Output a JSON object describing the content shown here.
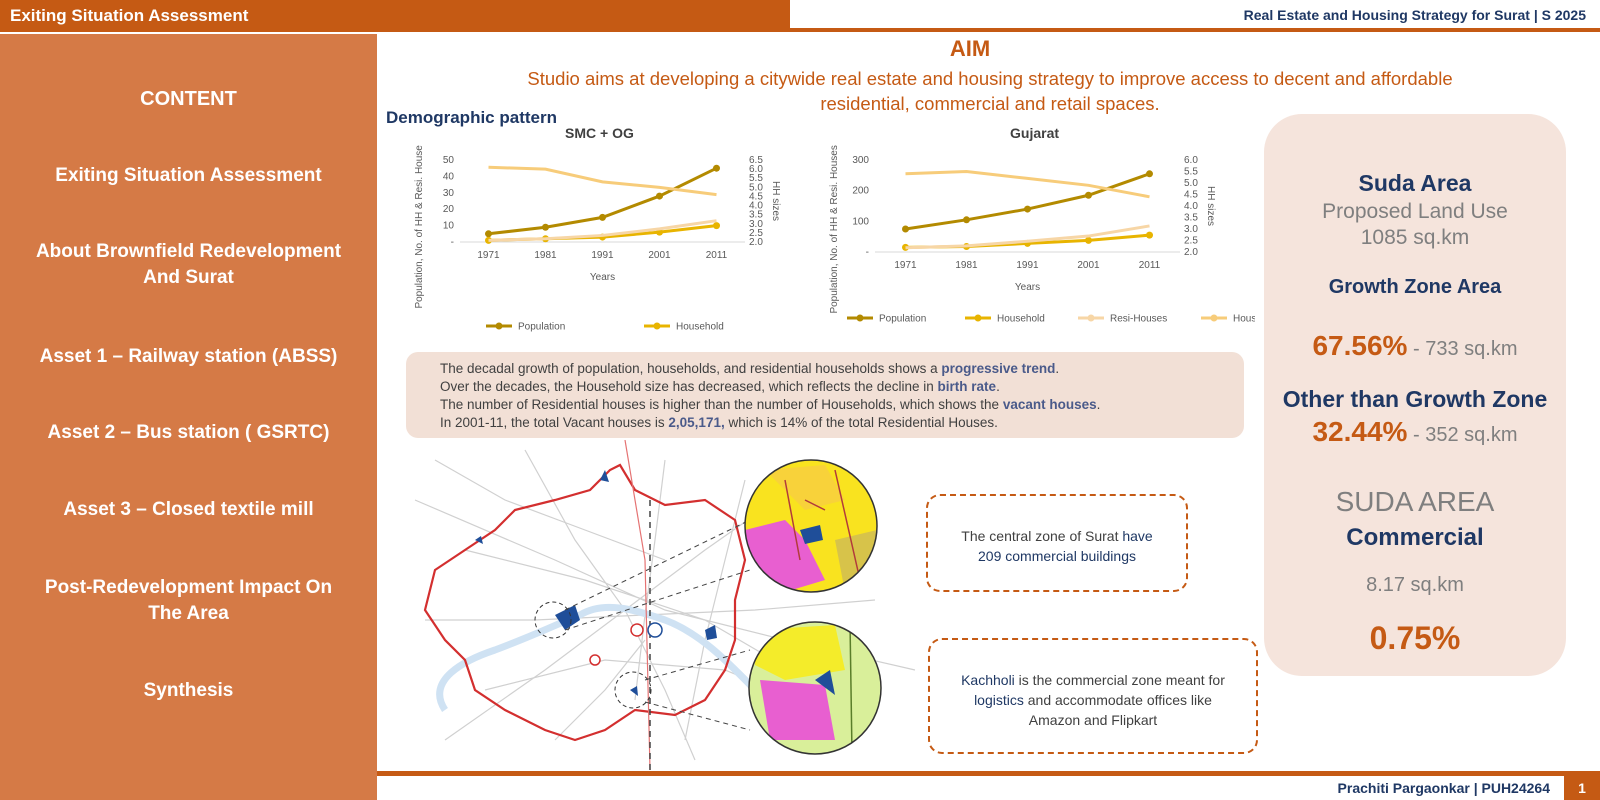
{
  "header": {
    "left_title": "Exiting Situation Assessment",
    "right_title": "Real Estate and Housing Strategy for Surat | S 2025"
  },
  "sidebar": {
    "heading": "CONTENT",
    "items": [
      {
        "label_line1": "Exiting Situation Assessment",
        "label_line2": ""
      },
      {
        "label_line1": "About Brownfield Redevelopment",
        "label_line2": "And Surat"
      },
      {
        "label_line1": "Asset 1 – Railway station (ABSS)",
        "label_line2": ""
      },
      {
        "label_line1": "Asset 2 – Bus station ( GSRTC)",
        "label_line2": ""
      },
      {
        "label_line1": "Asset 3 – Closed textile mill",
        "label_line2": ""
      },
      {
        "label_line1": "Post-Redevelopment Impact On",
        "label_line2": "The Area"
      },
      {
        "label_line1": "Synthesis",
        "label_line2": ""
      }
    ]
  },
  "aim": {
    "title": "AIM",
    "line1": "Studio aims at developing a citywide real estate and housing strategy to improve access to decent and affordable",
    "line2": "residential, commercial and retail spaces."
  },
  "section_title": "Demographic pattern",
  "chart_data": [
    {
      "type": "line",
      "title": "SMC + OG",
      "xlabel": "Years",
      "ylabel": "Population, No. of HH & Resi. Houses (in Lakhs)",
      "y2label": "HH sizes",
      "categories": [
        "1971",
        "1981",
        "1991",
        "2001",
        "2011"
      ],
      "yticks": [
        "-",
        "10",
        "20",
        "30",
        "40",
        "50"
      ],
      "y2ticks": [
        "2.0",
        "2.5",
        "3.0",
        "3.5",
        "4.0",
        "4.5",
        "5.0",
        "5.5",
        "6.0",
        "6.5"
      ],
      "ylim": [
        0,
        50
      ],
      "y2lim": [
        2.0,
        6.5
      ],
      "series": [
        {
          "name": "Population",
          "axis": "left",
          "color": "#b38a00",
          "values": [
            5,
            9,
            15,
            28,
            45
          ]
        },
        {
          "name": "Household",
          "axis": "left",
          "color": "#e8b400",
          "values": [
            1,
            2,
            3,
            6,
            10
          ]
        },
        {
          "name": "",
          "axis": "left",
          "color": "#f7d6a6",
          "values": [
            1,
            2,
            4,
            8,
            13
          ]
        },
        {
          "name": "",
          "axis": "right",
          "color": "#f7cc7a",
          "values": [
            6.1,
            6.0,
            5.3,
            5.0,
            4.6
          ]
        }
      ],
      "legend_position": "bottom"
    },
    {
      "type": "line",
      "title": "Gujarat",
      "xlabel": "Years",
      "ylabel": "Population, No. of HH & Resi. Houses (in Lakhs)",
      "y2label": "HH sizes",
      "categories": [
        "1971",
        "1981",
        "1991",
        "2001",
        "2011"
      ],
      "yticks": [
        "-",
        "100",
        "200",
        "300"
      ],
      "y2ticks": [
        "2.0",
        "2.5",
        "3.0",
        "3.5",
        "4.0",
        "4.5",
        "5.0",
        "5.5",
        "6.0"
      ],
      "ylim": [
        0,
        300
      ],
      "y2lim": [
        2.0,
        6.0
      ],
      "series": [
        {
          "name": "Population",
          "axis": "left",
          "color": "#b38a00",
          "values": [
            75,
            105,
            140,
            185,
            255
          ]
        },
        {
          "name": "Household",
          "axis": "left",
          "color": "#e8b400",
          "values": [
            15,
            18,
            28,
            38,
            55
          ]
        },
        {
          "name": "Resi-Houses",
          "axis": "left",
          "color": "#f7d6a6",
          "values": [
            14,
            20,
            35,
            52,
            85
          ]
        },
        {
          "name": "Household size",
          "axis": "right",
          "color": "#f7cc7a",
          "values": [
            5.4,
            5.5,
            5.2,
            4.9,
            4.4
          ]
        }
      ],
      "legend_position": "bottom"
    }
  ],
  "info": {
    "line1_a": "The decadal growth of population, households, and residential households shows a ",
    "line1_b": "progressive trend",
    "line1_c": ".",
    "line2_a": "Over the decades, the Household size has decreased, which reflects the decline in ",
    "line2_b": "birth rate",
    "line2_c": ".",
    "line3_a": " The number of Residential houses is higher than the number of Households, which shows the ",
    "line3_b": "vacant houses",
    "line3_c": ".",
    "line4_a": "In 2001-11, the total Vacant houses is ",
    "line4_b": "2,05,171,",
    "line4_c": " which is 14% of the total Residential Houses."
  },
  "callouts": {
    "central_a": "The central zone of Surat ",
    "central_b": "have",
    "central_line2": "209 commercial buildings",
    "kachholi_a": "Kachholi",
    "kachholi_b": " is the commercial zone meant for",
    "kachholi_c": "logistics",
    "kachholi_d": " and accommodate offices like",
    "kachholi_line3": "Amazon and Flipkart"
  },
  "right_panel": {
    "suda_title": "Suda Area",
    "proposed_label": "Proposed Land Use",
    "proposed_value": "1085 sq.km",
    "growth_title": "Growth Zone Area",
    "growth_pct": "67.56%",
    "growth_area": " - 733 sq.km",
    "other_title": "Other than Growth Zone",
    "other_pct": "32.44%",
    "other_area": " - 352 sq.km",
    "suda_area_caps": "SUDA AREA",
    "commercial_title": "Commercial",
    "commercial_area": "8.17 sq.km",
    "commercial_pct": "0.75%"
  },
  "footer": {
    "author": "Prachiti Pargaonkar | PUH24264",
    "page": "1"
  },
  "colors": {
    "accent": "#c55a14",
    "sidebar": "#d57a46",
    "navy": "#1f3864",
    "panel": "#f5e4dc"
  }
}
